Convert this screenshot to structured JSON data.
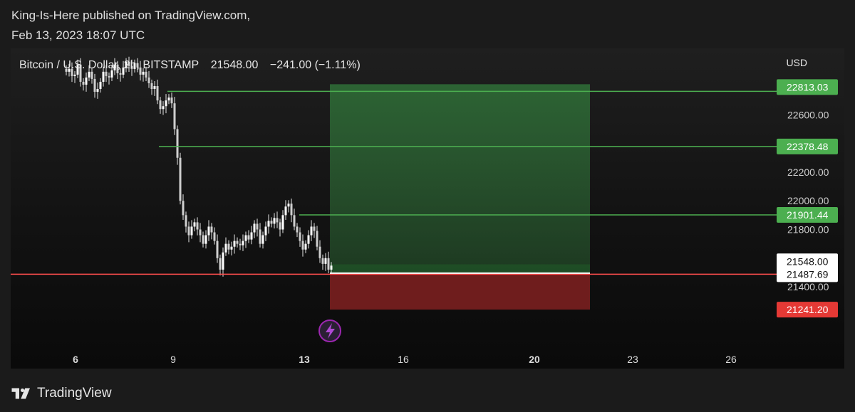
{
  "header": {
    "author_line": "King-Is-Here published on TradingView.com,",
    "date_line": "Feb 13, 2023 18:07 UTC"
  },
  "legend": {
    "symbol": "Bitcoin / U.S. Dollar, 2h, BITSTAMP",
    "price": "21548.00",
    "change": "−241.00 (−1.11%)"
  },
  "footer": {
    "brand": "TradingView"
  },
  "colors": {
    "bull": "#4caf50",
    "bear": "#e53935",
    "profit_zone": "#2e6b36",
    "loss_zone": "#7a1f1f",
    "line": "#4caf50",
    "entry_line": "#ff4d4d"
  },
  "icons": {
    "logo": "tradingview-logo-icon",
    "alert": "lightning-icon"
  },
  "chart_data": {
    "type": "candlestick",
    "currency": "USD",
    "y_tick_labels": [
      "22600.00",
      "22200.00",
      "22000.00",
      "21800.00",
      "21400.00"
    ],
    "x_tick_labels": [
      {
        "label": "6",
        "bold": true
      },
      {
        "label": "9",
        "bold": false
      },
      {
        "label": "13",
        "bold": true
      },
      {
        "label": "16",
        "bold": false
      },
      {
        "label": "20",
        "bold": true
      },
      {
        "label": "23",
        "bold": false
      },
      {
        "label": "26",
        "bold": false
      }
    ],
    "horizontal_levels": [
      {
        "price": 22378.48,
        "label": "22378.48",
        "color": "#4caf50"
      },
      {
        "price": 21901.44,
        "label": "21901.44",
        "color": "#4caf50"
      },
      {
        "price": 21487.69,
        "label": "21487.69",
        "color": "#e53935"
      }
    ],
    "position": {
      "type": "long",
      "entry": 21487.69,
      "target": 22813.03,
      "stop": 21241.2,
      "target_label": "22813.03",
      "entry_label": "21487.69",
      "stop_label": "21241.20"
    },
    "last_price": {
      "value": 21548.0,
      "label": "21548.00"
    },
    "candles_close": [
      22900,
      22920,
      22870,
      22880,
      22950,
      22830,
      22810,
      22860,
      22900,
      22850,
      22760,
      22780,
      22830,
      22900,
      22870,
      22860,
      22910,
      22950,
      22890,
      22880,
      22930,
      22970,
      22940,
      22920,
      22960,
      22930,
      22880,
      22900,
      22860,
      22820,
      22780,
      22800,
      22700,
      22640,
      22660,
      22700,
      22720,
      22680,
      22500,
      22300,
      22000,
      21900,
      21820,
      21760,
      21820,
      21850,
      21800,
      21760,
      21700,
      21760,
      21820,
      21780,
      21720,
      21600,
      21520,
      21640,
      21700,
      21660,
      21680,
      21720,
      21700,
      21690,
      21720,
      21760,
      21730,
      21780,
      21840,
      21800,
      21700,
      21760,
      21820,
      21860,
      21840,
      21880,
      21850,
      21800,
      21900,
      21960,
      21980,
      21900,
      21820,
      21780,
      21720,
      21660,
      21700,
      21760,
      21820,
      21790,
      21680,
      21600,
      21560,
      21600,
      21520,
      21548
    ]
  }
}
